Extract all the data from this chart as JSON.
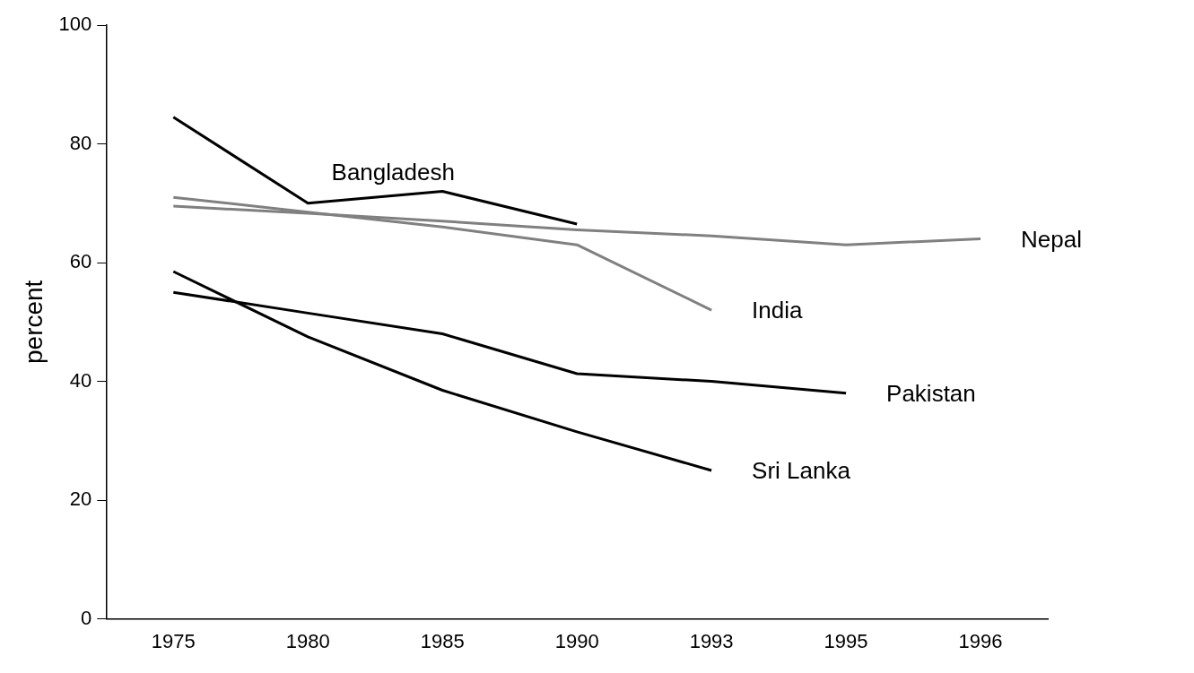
{
  "chart_data": {
    "type": "line",
    "ylabel": "percent",
    "categories": [
      "1975",
      "1980",
      "1985",
      "1990",
      "1993",
      "1995",
      "1996"
    ],
    "ylim": [
      0,
      100
    ],
    "yticks": [
      0,
      20,
      40,
      60,
      80,
      100
    ],
    "grid": false,
    "legend": false,
    "marker": "none",
    "line_style": "solid",
    "series": [
      {
        "name": "Bangladesh",
        "color": "#000000",
        "values": [
          84.5,
          70,
          72,
          66.5,
          null,
          null,
          null
        ]
      },
      {
        "name": "Nepal",
        "color": "#808080",
        "values": [
          69.5,
          68.3,
          67,
          65.5,
          64.5,
          63,
          64
        ]
      },
      {
        "name": "India",
        "color": "#808080",
        "values": [
          71,
          68.5,
          66,
          63,
          52,
          null,
          null
        ]
      },
      {
        "name": "Pakistan",
        "color": "#000000",
        "values": [
          55,
          51.5,
          48,
          41.3,
          40,
          38,
          null
        ]
      },
      {
        "name": "Sri Lanka",
        "color": "#000000",
        "values": [
          58.5,
          47.5,
          38.5,
          31.5,
          25,
          null,
          null
        ]
      }
    ]
  }
}
